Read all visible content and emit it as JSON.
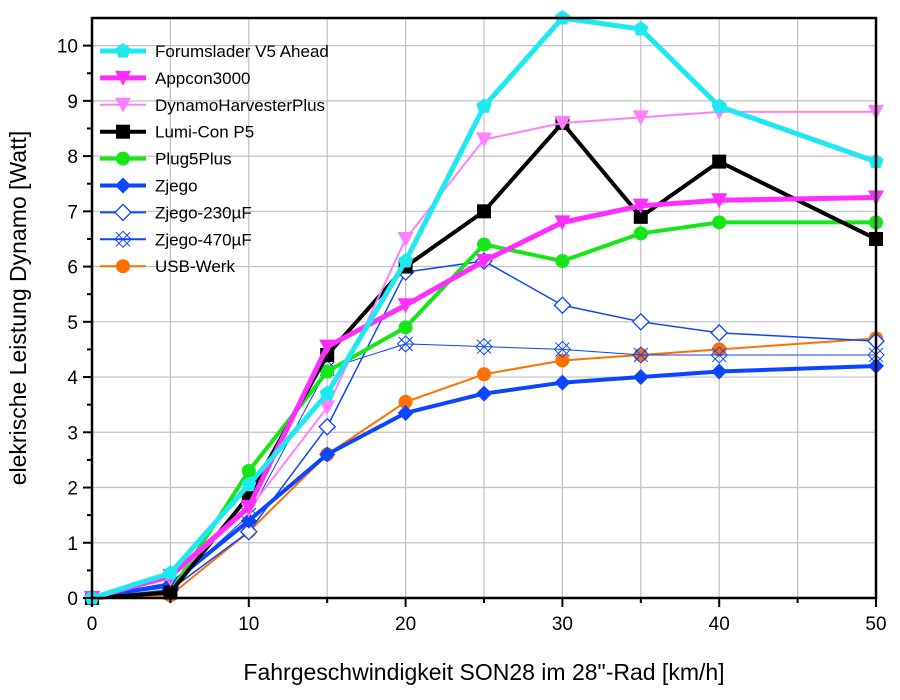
{
  "chart_data": {
    "type": "line",
    "title": "",
    "xlabel": "Fahrgeschwindigkeit SON28 im 28\"-Rad [km/h]",
    "ylabel": "elekrische Leistung Dynamo [Watt]",
    "xlim": [
      0,
      50
    ],
    "ylim": [
      0,
      10.5
    ],
    "xticks": [
      0,
      10,
      20,
      30,
      40,
      50
    ],
    "yticks": [
      0,
      1,
      2,
      3,
      4,
      5,
      6,
      7,
      8,
      9,
      10
    ],
    "grid": true,
    "legend_position": "top-left",
    "x": [
      0,
      5,
      10,
      15,
      20,
      25,
      30,
      35,
      40,
      50
    ],
    "series": [
      {
        "name": "Forumslader V5 Ahead",
        "color": "#1EE8F0",
        "marker": "pentagon",
        "width": 5,
        "values": [
          0,
          0.45,
          2.05,
          3.7,
          6.1,
          8.9,
          10.5,
          10.3,
          8.9,
          7.9
        ]
      },
      {
        "name": "Appcon3000",
        "color": "#FF2EFF",
        "marker": "triangle-down",
        "width": 5,
        "values": [
          0,
          0.4,
          1.65,
          4.55,
          5.3,
          6.1,
          6.8,
          7.1,
          7.2,
          7.25
        ]
      },
      {
        "name": "DynamoHarvesterPlus",
        "color": "#FF80FF",
        "marker": "triangle-down",
        "width": 2,
        "values": [
          0,
          0.35,
          1.6,
          3.45,
          6.5,
          8.3,
          8.6,
          8.7,
          8.8,
          8.8
        ]
      },
      {
        "name": "Lumi-Con P5",
        "color": "#000000",
        "marker": "square",
        "width": 4,
        "values": [
          0,
          0.1,
          1.85,
          4.4,
          6.0,
          7.0,
          8.6,
          6.9,
          7.9,
          6.5
        ]
      },
      {
        "name": "Plug5Plus",
        "color": "#16E616",
        "marker": "circle",
        "width": 4,
        "values": [
          0,
          0.1,
          2.3,
          4.1,
          4.9,
          6.4,
          6.1,
          6.6,
          6.8,
          6.8
        ]
      },
      {
        "name": "Zjego",
        "color": "#0A46FF",
        "marker": "diamond",
        "width": 4,
        "values": [
          0,
          0.25,
          1.4,
          2.6,
          3.35,
          3.7,
          3.9,
          4.0,
          4.1,
          4.2
        ]
      },
      {
        "name": "Zjego-230µF",
        "color": "#0A46FF",
        "marker": "diamond-open",
        "width": 1.5,
        "values": [
          0,
          0.15,
          1.2,
          3.1,
          5.9,
          6.1,
          5.3,
          5.0,
          4.8,
          4.65
        ]
      },
      {
        "name": "Zjego-470µF",
        "color": "#0A46FF",
        "marker": "cross-open",
        "width": 1,
        "values": [
          0,
          0.2,
          1.5,
          4.15,
          4.6,
          4.55,
          4.5,
          4.4,
          4.4,
          4.4
        ]
      },
      {
        "name": "USB-Werk",
        "color": "#FF7000",
        "marker": "circle",
        "width": 2,
        "values": [
          0,
          0.05,
          1.2,
          2.6,
          3.55,
          4.05,
          4.3,
          4.4,
          4.5,
          4.7
        ]
      }
    ]
  }
}
